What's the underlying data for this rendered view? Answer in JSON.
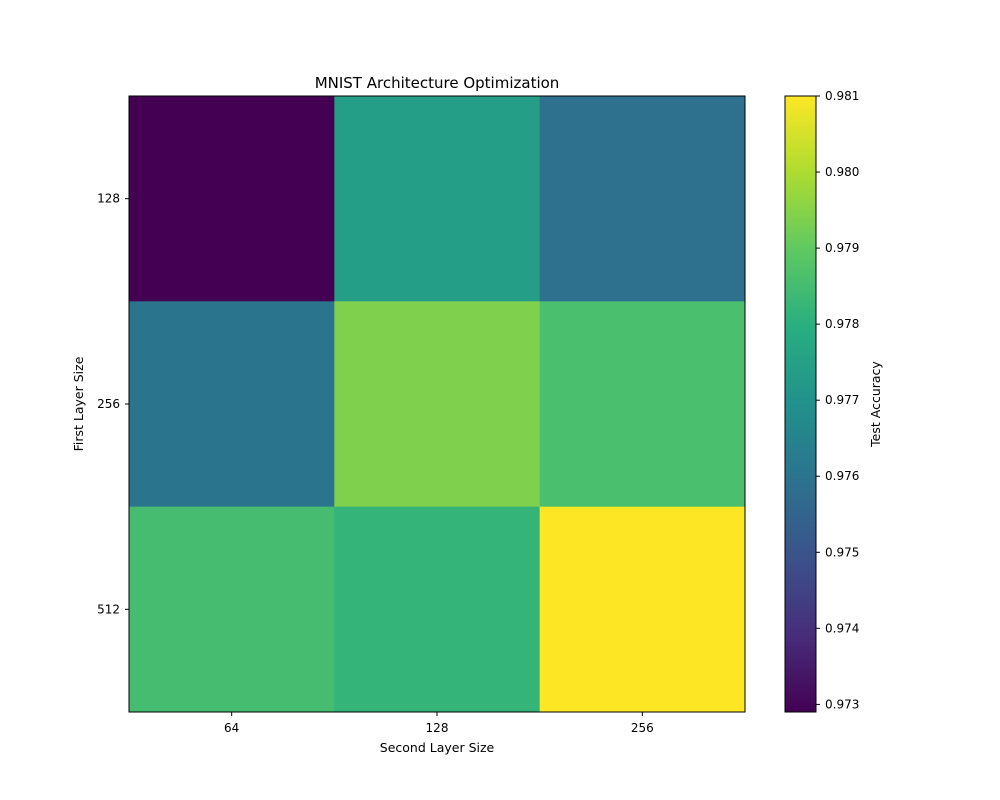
{
  "chart_data": {
    "type": "heatmap",
    "title": "MNIST Architecture Optimization",
    "xlabel": "Second Layer Size",
    "ylabel": "First Layer Size",
    "x_categories": [
      "64",
      "128",
      "256"
    ],
    "y_categories": [
      "128",
      "256",
      "512"
    ],
    "values": [
      [
        0.9729,
        0.9774,
        0.9759
      ],
      [
        0.976,
        0.9794,
        0.9786
      ],
      [
        0.9785,
        0.9782,
        0.981
      ]
    ],
    "colorbar": {
      "label": "Test Accuracy",
      "range": [
        0.9729,
        0.981
      ],
      "ticks": [
        "0.973",
        "0.974",
        "0.975",
        "0.976",
        "0.977",
        "0.978",
        "0.979",
        "0.980",
        "0.981"
      ],
      "colormap": "viridis"
    },
    "grid": false
  }
}
